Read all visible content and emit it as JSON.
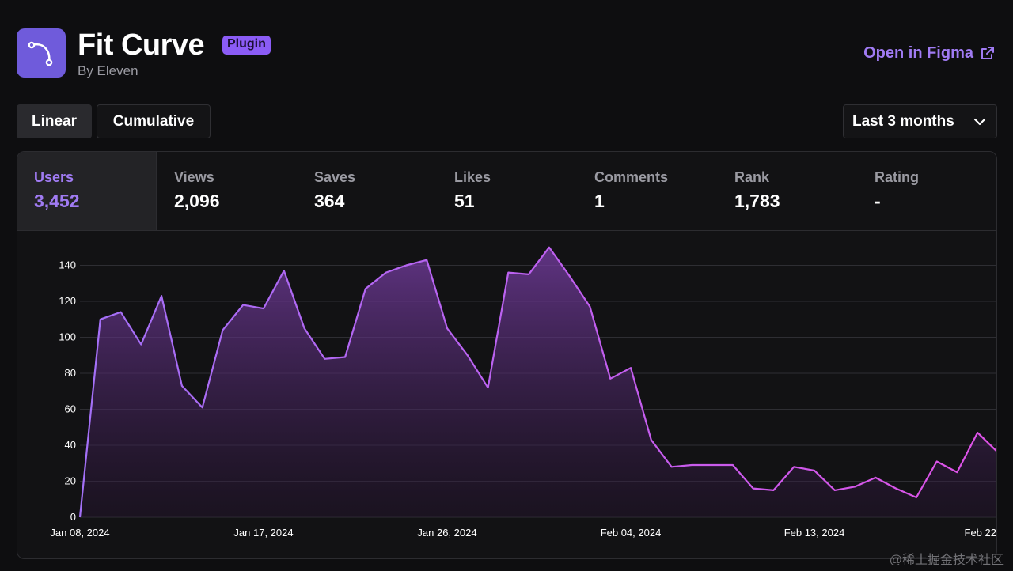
{
  "header": {
    "icon": "curve-icon",
    "title": "Fit Curve",
    "badge": "Plugin",
    "author": "By Eleven",
    "open_link": "Open in Figma",
    "open_link_icon": "external-link-icon"
  },
  "view_toggle": {
    "options": [
      "Linear",
      "Cumulative"
    ],
    "selected": "Linear"
  },
  "range_select": {
    "value": "Last 3 months",
    "icon": "chevron-down-icon"
  },
  "stats": [
    {
      "label": "Users",
      "value": "3,452",
      "active": true
    },
    {
      "label": "Views",
      "value": "2,096"
    },
    {
      "label": "Saves",
      "value": "364"
    },
    {
      "label": "Likes",
      "value": "51"
    },
    {
      "label": "Comments",
      "value": "1"
    },
    {
      "label": "Rank",
      "value": "1,783"
    },
    {
      "label": "Rating",
      "value": "-"
    }
  ],
  "colors": {
    "accent": "#a07bf3",
    "line_start": "#a370f7",
    "line_end": "#e052e8",
    "background": "#0e0e10"
  },
  "chart_data": {
    "type": "area",
    "series_label": "Users",
    "x": [
      "2024-01-08",
      "2024-01-09",
      "2024-01-10",
      "2024-01-11",
      "2024-01-12",
      "2024-01-13",
      "2024-01-14",
      "2024-01-15",
      "2024-01-16",
      "2024-01-17",
      "2024-01-18",
      "2024-01-19",
      "2024-01-20",
      "2024-01-21",
      "2024-01-22",
      "2024-01-23",
      "2024-01-24",
      "2024-01-25",
      "2024-01-26",
      "2024-01-27",
      "2024-01-28",
      "2024-01-29",
      "2024-01-30",
      "2024-01-31",
      "2024-02-01",
      "2024-02-02",
      "2024-02-03",
      "2024-02-04",
      "2024-02-05",
      "2024-02-06",
      "2024-02-07",
      "2024-02-08",
      "2024-02-09",
      "2024-02-10",
      "2024-02-11",
      "2024-02-12",
      "2024-02-13",
      "2024-02-14",
      "2024-02-15",
      "2024-02-16",
      "2024-02-17",
      "2024-02-18",
      "2024-02-19",
      "2024-02-20",
      "2024-02-21",
      "2024-02-22"
    ],
    "values": [
      0,
      110,
      114,
      96,
      123,
      73,
      61,
      104,
      118,
      116,
      137,
      105,
      88,
      89,
      127,
      136,
      140,
      143,
      105,
      90,
      72,
      136,
      135,
      150,
      134,
      117,
      77,
      83,
      43,
      28,
      29,
      29,
      29,
      16,
      15,
      28,
      26,
      15,
      17,
      22,
      16,
      11,
      31,
      25,
      47,
      36
    ],
    "x_tick_labels": [
      "Jan 08, 2024",
      "Jan 17, 2024",
      "Jan 26, 2024",
      "Feb 04, 2024",
      "Feb 13, 2024",
      "Feb 22"
    ],
    "x_tick_index": [
      0,
      9,
      18,
      27,
      36,
      45
    ],
    "y_ticks": [
      0,
      20,
      40,
      60,
      80,
      100,
      120,
      140
    ],
    "ylim": [
      0,
      160
    ],
    "grid": true
  },
  "watermark": "@稀土掘金技术社区"
}
